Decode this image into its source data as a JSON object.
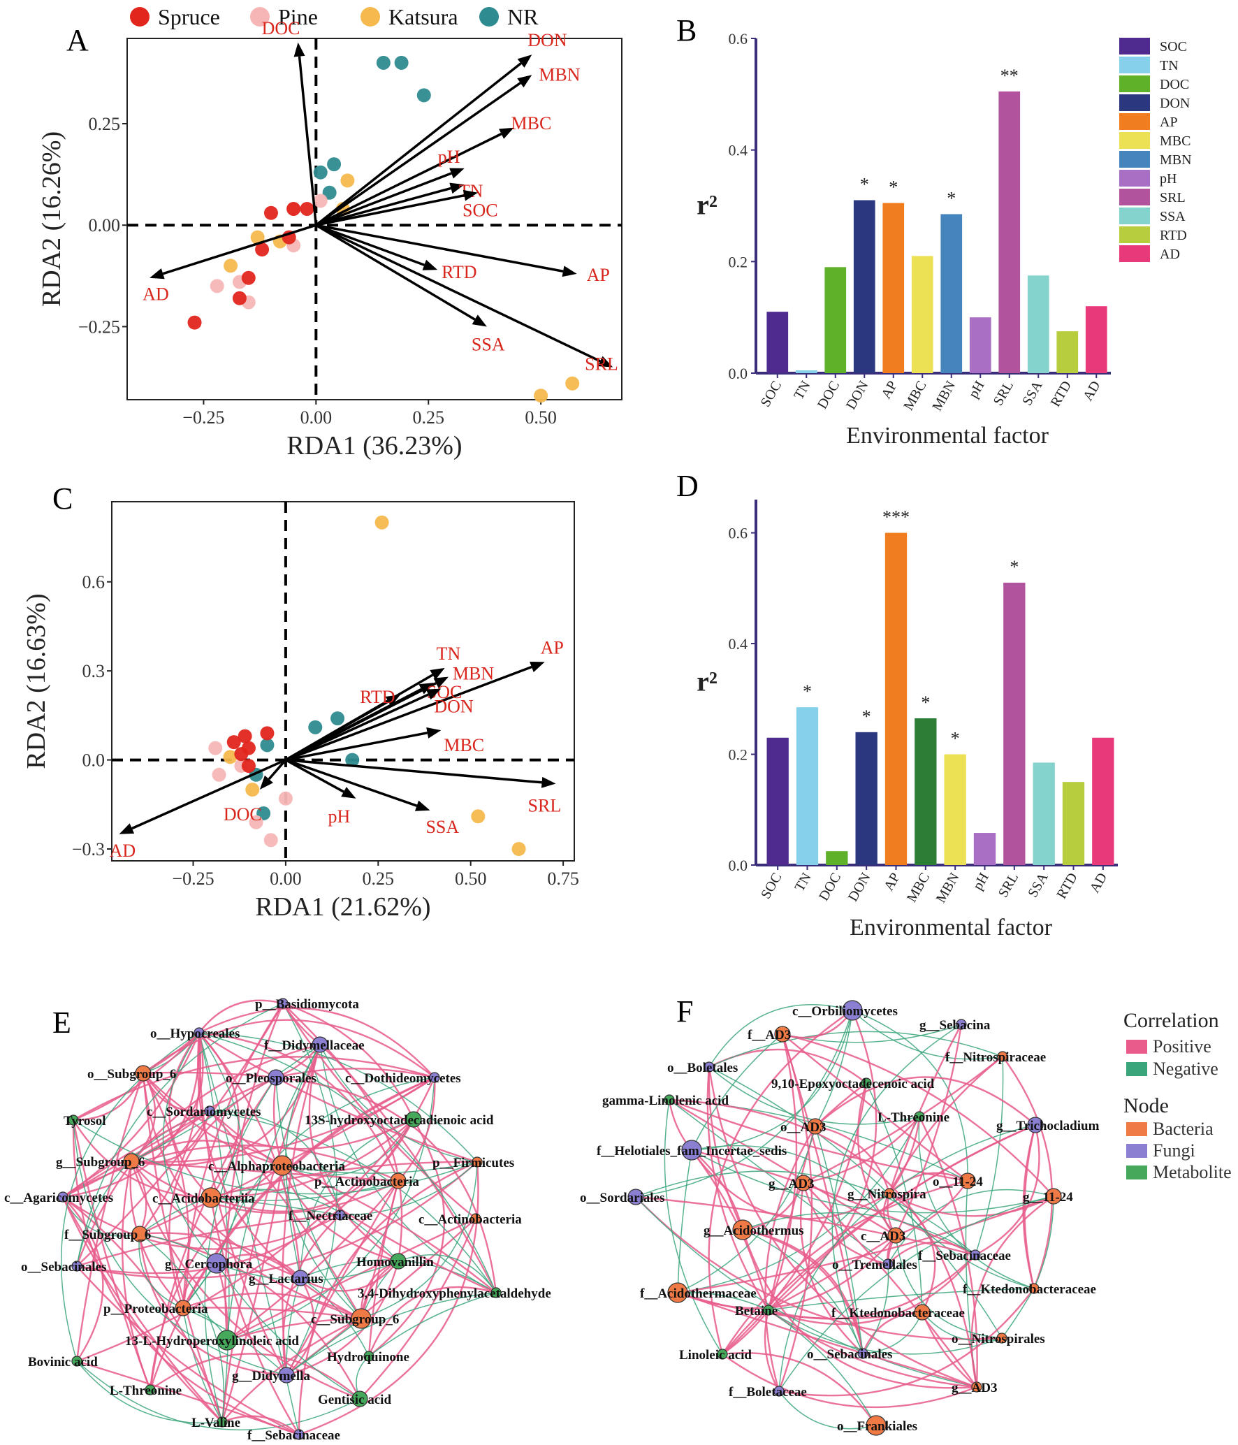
{
  "legend_groups": [
    {
      "name": "Spruce",
      "color": "#e2261e"
    },
    {
      "name": "Pine",
      "color": "#f7b6b6"
    },
    {
      "name": "Katsura",
      "color": "#f6b94e"
    },
    {
      "name": "NR",
      "color": "#2e8b8f"
    }
  ],
  "colors": {
    "arrow": "#000000",
    "arrow_label": "#d9261c",
    "axis_purple": "#3a2e7a",
    "positive": "#e85b8a",
    "negative": "#3aa57a"
  },
  "chart_data": [
    {
      "panel": "A",
      "type": "scatter",
      "xlabel": "RDA1 (36.23%)",
      "ylabel": "RDA2 (16.26%)",
      "xlim": [
        -0.42,
        0.68
      ],
      "ylim": [
        -0.43,
        0.46
      ],
      "xticks": [
        -0.25,
        0.0,
        0.25,
        0.5
      ],
      "xtick_labels": [
        "−0.25",
        "0.00",
        "0.25",
        "0.50"
      ],
      "yticks": [
        -0.25,
        0.0,
        0.25
      ],
      "ytick_labels": [
        "−0.25",
        "0.00",
        "0.25"
      ],
      "points": [
        {
          "g": "NR",
          "x": 0.15,
          "y": 0.4
        },
        {
          "g": "NR",
          "x": 0.19,
          "y": 0.4
        },
        {
          "g": "NR",
          "x": 0.24,
          "y": 0.32
        },
        {
          "g": "NR",
          "x": 0.04,
          "y": 0.15
        },
        {
          "g": "NR",
          "x": 0.01,
          "y": 0.13
        },
        {
          "g": "NR",
          "x": 0.03,
          "y": 0.08
        },
        {
          "g": "Katsura",
          "x": 0.07,
          "y": 0.11
        },
        {
          "g": "Katsura",
          "x": 0.06,
          "y": 0.04
        },
        {
          "g": "Katsura",
          "x": -0.13,
          "y": -0.03
        },
        {
          "g": "Katsura",
          "x": -0.08,
          "y": -0.04
        },
        {
          "g": "Katsura",
          "x": -0.19,
          "y": -0.1
        },
        {
          "g": "Katsura",
          "x": 0.5,
          "y": -0.42
        },
        {
          "g": "Katsura",
          "x": 0.57,
          "y": -0.39
        },
        {
          "g": "Pine",
          "x": 0.01,
          "y": 0.06
        },
        {
          "g": "Pine",
          "x": -0.05,
          "y": 0.04
        },
        {
          "g": "Pine",
          "x": -0.05,
          "y": -0.05
        },
        {
          "g": "Pine",
          "x": -0.17,
          "y": -0.14
        },
        {
          "g": "Pine",
          "x": -0.22,
          "y": -0.15
        },
        {
          "g": "Pine",
          "x": -0.15,
          "y": -0.19
        },
        {
          "g": "Spruce",
          "x": -0.05,
          "y": 0.04
        },
        {
          "g": "Spruce",
          "x": -0.02,
          "y": 0.04
        },
        {
          "g": "Spruce",
          "x": -0.1,
          "y": 0.03
        },
        {
          "g": "Spruce",
          "x": -0.06,
          "y": -0.03
        },
        {
          "g": "Spruce",
          "x": -0.12,
          "y": -0.06
        },
        {
          "g": "Spruce",
          "x": -0.15,
          "y": -0.13
        },
        {
          "g": "Spruce",
          "x": -0.17,
          "y": -0.18
        },
        {
          "g": "Spruce",
          "x": -0.27,
          "y": -0.24
        }
      ],
      "arrows": [
        {
          "label": "DOC",
          "x": -0.04,
          "y": 0.45
        },
        {
          "label": "DON",
          "x": 0.48,
          "y": 0.42
        },
        {
          "label": "MBN",
          "x": 0.48,
          "y": 0.37
        },
        {
          "label": "MBC",
          "x": 0.44,
          "y": 0.24
        },
        {
          "label": "pH",
          "x": 0.33,
          "y": 0.14
        },
        {
          "label": "TN",
          "x": 0.33,
          "y": 0.1
        },
        {
          "label": "SOC",
          "x": 0.36,
          "y": 0.08
        },
        {
          "label": "AD",
          "x": -0.37,
          "y": -0.13
        },
        {
          "label": "RTD",
          "x": 0.27,
          "y": -0.11
        },
        {
          "label": "AP",
          "x": 0.58,
          "y": -0.12
        },
        {
          "label": "SSA",
          "x": 0.38,
          "y": -0.25
        },
        {
          "label": "SRL",
          "x": 0.66,
          "y": -0.35
        }
      ]
    },
    {
      "panel": "B",
      "type": "bar",
      "xlabel": "Environmental factor",
      "ylabel": "r²",
      "ylim": [
        0,
        0.6
      ],
      "yticks": [
        0.0,
        0.2,
        0.4,
        0.6
      ],
      "ytick_labels": [
        "0.0",
        "0.2",
        "0.4",
        "0.6"
      ],
      "categories": [
        "SOC",
        "TN",
        "DOC",
        "DON",
        "AP",
        "MBC",
        "MBN",
        "pH",
        "SRL",
        "SSA",
        "RTD",
        "AD"
      ],
      "values": [
        0.11,
        0.005,
        0.19,
        0.31,
        0.305,
        0.21,
        0.285,
        0.1,
        0.505,
        0.175,
        0.075,
        0.12
      ],
      "significance": [
        "",
        "",
        "",
        "*",
        "*",
        "",
        "*",
        "",
        "**",
        "",
        "",
        ""
      ],
      "colors": [
        "#4f2a8f",
        "#86d0ec",
        "#5fb129",
        "#2b377f",
        "#f07e20",
        "#ece054",
        "#4684bd",
        "#a86fc4",
        "#b2549d",
        "#85d3cd",
        "#b7cd3e",
        "#e83a7a"
      ]
    },
    {
      "panel": "C",
      "type": "scatter",
      "xlabel": "RDA1 (21.62%)",
      "ylabel": "RDA2 (16.63%)",
      "xlim": [
        -0.47,
        0.78
      ],
      "ylim": [
        -0.34,
        0.87
      ],
      "xticks": [
        -0.25,
        0.0,
        0.25,
        0.5,
        0.75
      ],
      "xtick_labels": [
        "−0.25",
        "0.00",
        "0.25",
        "0.50",
        "0.75"
      ],
      "yticks": [
        -0.3,
        0.0,
        0.3,
        0.6
      ],
      "ytick_labels": [
        "−0.3",
        "0.0",
        "0.3",
        "0.6"
      ],
      "points": [
        {
          "g": "Katsura",
          "x": 0.26,
          "y": 0.8
        },
        {
          "g": "Katsura",
          "x": 0.52,
          "y": -0.19
        },
        {
          "g": "Katsura",
          "x": 0.63,
          "y": -0.3
        },
        {
          "g": "Katsura",
          "x": -0.15,
          "y": 0.01
        },
        {
          "g": "Katsura",
          "x": -0.09,
          "y": -0.1
        },
        {
          "g": "NR",
          "x": 0.14,
          "y": 0.14
        },
        {
          "g": "NR",
          "x": 0.08,
          "y": 0.11
        },
        {
          "g": "NR",
          "x": 0.18,
          "y": 0.0
        },
        {
          "g": "NR",
          "x": -0.05,
          "y": 0.05
        },
        {
          "g": "NR",
          "x": -0.08,
          "y": -0.05
        },
        {
          "g": "NR",
          "x": -0.06,
          "y": -0.18
        },
        {
          "g": "Pine",
          "x": -0.19,
          "y": 0.04
        },
        {
          "g": "Pine",
          "x": -0.18,
          "y": -0.05
        },
        {
          "g": "Pine",
          "x": -0.12,
          "y": -0.02
        },
        {
          "g": "Pine",
          "x": -0.08,
          "y": -0.21
        },
        {
          "g": "Pine",
          "x": -0.04,
          "y": -0.27
        },
        {
          "g": "Pine",
          "x": 0.0,
          "y": -0.13
        },
        {
          "g": "Spruce",
          "x": -0.11,
          "y": 0.08
        },
        {
          "g": "Spruce",
          "x": -0.05,
          "y": 0.09
        },
        {
          "g": "Spruce",
          "x": -0.14,
          "y": 0.06
        },
        {
          "g": "Spruce",
          "x": -0.1,
          "y": 0.04
        },
        {
          "g": "Spruce",
          "x": -0.12,
          "y": 0.02
        },
        {
          "g": "Spruce",
          "x": -0.1,
          "y": -0.02
        }
      ],
      "arrows": [
        {
          "label": "TN",
          "x": 0.43,
          "y": 0.31
        },
        {
          "label": "AP",
          "x": 0.7,
          "y": 0.33
        },
        {
          "label": "MBN",
          "x": 0.44,
          "y": 0.28
        },
        {
          "label": "RTD",
          "x": 0.31,
          "y": 0.22
        },
        {
          "label": "SOC",
          "x": 0.4,
          "y": 0.26
        },
        {
          "label": "DON",
          "x": 0.42,
          "y": 0.24
        },
        {
          "label": "MBC",
          "x": 0.42,
          "y": 0.1
        },
        {
          "label": "SRL",
          "x": 0.73,
          "y": -0.08
        },
        {
          "label": "SSA",
          "x": 0.39,
          "y": -0.17
        },
        {
          "label": "pH",
          "x": 0.19,
          "y": -0.13
        },
        {
          "label": "DOC",
          "x": -0.07,
          "y": -0.1
        },
        {
          "label": "AD",
          "x": -0.45,
          "y": -0.25
        }
      ]
    },
    {
      "panel": "D",
      "type": "bar",
      "xlabel": "Environmental factor",
      "ylabel": "r²",
      "ylim": [
        0,
        0.66
      ],
      "yticks": [
        0.0,
        0.2,
        0.4,
        0.6
      ],
      "ytick_labels": [
        "0.0",
        "0.2",
        "0.4",
        "0.6"
      ],
      "categories": [
        "SOC",
        "TN",
        "DOC",
        "DON",
        "AP",
        "MBC",
        "MBN",
        "pH",
        "SRL",
        "SSA",
        "RTD",
        "AD"
      ],
      "values": [
        0.23,
        0.285,
        0.025,
        0.24,
        0.6,
        0.265,
        0.2,
        0.058,
        0.51,
        0.185,
        0.15,
        0.23
      ],
      "significance": [
        "",
        "*",
        "",
        "*",
        "***",
        "*",
        "*",
        "",
        "*",
        "",
        "",
        ""
      ],
      "colors": [
        "#4f2a8f",
        "#86d0ec",
        "#5fb129",
        "#2b377f",
        "#f07e20",
        "#2e7d36",
        "#ece054",
        "#a86fc4",
        "#b2549d",
        "#85d3cd",
        "#b7cd3e",
        "#e83a7a"
      ]
    },
    {
      "panel": "E",
      "type": "network",
      "nodes": [
        {
          "label": "p__Basidiomycota",
          "type": "Fungi",
          "size": 1
        },
        {
          "label": "o__Hypocreales",
          "type": "Fungi",
          "size": 1
        },
        {
          "label": "f__Didymellaceae",
          "type": "Fungi",
          "size": 2
        },
        {
          "label": "o__Subgroup_6",
          "type": "Bacteria",
          "size": 2
        },
        {
          "label": "o__Pleosporales",
          "type": "Fungi",
          "size": 2
        },
        {
          "label": "c__Dothideomycetes",
          "type": "Fungi",
          "size": 1
        },
        {
          "label": "c__Sordariomycetes",
          "type": "Fungi",
          "size": 1
        },
        {
          "label": "13S-hydroxyoctadecadienoic acid",
          "type": "Metabolite",
          "size": 2
        },
        {
          "label": "Tyrosol",
          "type": "Metabolite",
          "size": 1
        },
        {
          "label": "g__Subgroup_6",
          "type": "Bacteria",
          "size": 2
        },
        {
          "label": "c__Alphaproteobacteria",
          "type": "Bacteria",
          "size": 3
        },
        {
          "label": "p__Firmicutes",
          "type": "Bacteria",
          "size": 1
        },
        {
          "label": "p__Actinobacteria",
          "type": "Bacteria",
          "size": 2
        },
        {
          "label": "c__Agaricomycetes",
          "type": "Fungi",
          "size": 1
        },
        {
          "label": "c__Acidobacteriia",
          "type": "Bacteria",
          "size": 3
        },
        {
          "label": "f__Nectriaceae",
          "type": "Fungi",
          "size": 1
        },
        {
          "label": "c__Actinobacteria",
          "type": "Bacteria",
          "size": 1
        },
        {
          "label": "f__Subgroup_6",
          "type": "Bacteria",
          "size": 2
        },
        {
          "label": "o__Sebacinales",
          "type": "Fungi",
          "size": 1
        },
        {
          "label": "g__Cercophora",
          "type": "Fungi",
          "size": 3
        },
        {
          "label": "g__Lactarius",
          "type": "Fungi",
          "size": 2
        },
        {
          "label": "Homovanillin",
          "type": "Metabolite",
          "size": 2
        },
        {
          "label": "3,4-Dihydroxyphenylacetaldehyde",
          "type": "Metabolite",
          "size": 1
        },
        {
          "label": "p__Proteobacteria",
          "type": "Bacteria",
          "size": 2
        },
        {
          "label": "c__Subgroup_6",
          "type": "Bacteria",
          "size": 3
        },
        {
          "label": "13-L-Hydroperoxylinoleic acid",
          "type": "Metabolite",
          "size": 3
        },
        {
          "label": "Bovinic acid",
          "type": "Metabolite",
          "size": 1
        },
        {
          "label": "Hydroquinone",
          "type": "Metabolite",
          "size": 1
        },
        {
          "label": "g__Didymella",
          "type": "Fungi",
          "size": 2
        },
        {
          "label": "L-Threonine",
          "type": "Metabolite",
          "size": 1
        },
        {
          "label": "Gentisic acid",
          "type": "Metabolite",
          "size": 2
        },
        {
          "label": "L-Valine",
          "type": "Metabolite",
          "size": 1
        },
        {
          "label": "f__Sebacinaceae",
          "type": "Fungi",
          "size": 1
        }
      ]
    },
    {
      "panel": "F",
      "type": "network",
      "nodes": [
        {
          "label": "c__Orbiliomycetes",
          "type": "Fungi",
          "size": 3
        },
        {
          "label": "g__Sebacina",
          "type": "Fungi",
          "size": 1
        },
        {
          "label": "f__AD3",
          "type": "Bacteria",
          "size": 2
        },
        {
          "label": "f__Nitrospiraceae",
          "type": "Bacteria",
          "size": 1
        },
        {
          "label": "o__Boletales",
          "type": "Fungi",
          "size": 1
        },
        {
          "label": "9,10-Epoxyoctadecenoic acid",
          "type": "Metabolite",
          "size": 1
        },
        {
          "label": "gamma-Linolenic acid",
          "type": "Metabolite",
          "size": 1
        },
        {
          "label": "L-Threonine",
          "type": "Metabolite",
          "size": 1
        },
        {
          "label": "o__AD3",
          "type": "Bacteria",
          "size": 2
        },
        {
          "label": "g__Trichocladium",
          "type": "Fungi",
          "size": 2
        },
        {
          "label": "f__Helotiales_fam_Incertae_sedis",
          "type": "Fungi",
          "size": 3
        },
        {
          "label": "g__AD3",
          "type": "Bacteria",
          "size": 2
        },
        {
          "label": "g__Nitrospira",
          "type": "Bacteria",
          "size": 1
        },
        {
          "label": "o__11-24",
          "type": "Bacteria",
          "size": 2
        },
        {
          "label": "o__Sordariales",
          "type": "Fungi",
          "size": 2
        },
        {
          "label": "g__11-24",
          "type": "Bacteria",
          "size": 2
        },
        {
          "label": "g__Acidothermus",
          "type": "Bacteria",
          "size": 3
        },
        {
          "label": "c__AD3",
          "type": "Bacteria",
          "size": 2
        },
        {
          "label": "o__Tremellales",
          "type": "Fungi",
          "size": 1
        },
        {
          "label": "f__Sebacinaceae",
          "type": "Fungi",
          "size": 1
        },
        {
          "label": "f__Acidothermaceae",
          "type": "Bacteria",
          "size": 3
        },
        {
          "label": "f__Ktedonobacteraceae",
          "type": "Bacteria",
          "size": 1
        },
        {
          "label": "Betaine",
          "type": "Metabolite",
          "size": 1
        },
        {
          "label": "f__Ktedonobacteraceae",
          "type": "Bacteria",
          "size": 2
        },
        {
          "label": "o__Nitrospirales",
          "type": "Bacteria",
          "size": 1
        },
        {
          "label": "Linoleic acid",
          "type": "Metabolite",
          "size": 1
        },
        {
          "label": "o__Sebacinales",
          "type": "Fungi",
          "size": 1
        },
        {
          "label": "g__AD3",
          "type": "Bacteria",
          "size": 1
        },
        {
          "label": "f__Boletaceae",
          "type": "Fungi",
          "size": 1
        },
        {
          "label": "o__Frankiales",
          "type": "Bacteria",
          "size": 3
        }
      ]
    }
  ],
  "bar_legend": {
    "items": [
      "SOC",
      "TN",
      "DOC",
      "DON",
      "AP",
      "MBC",
      "MBN",
      "pH",
      "SRL",
      "SSA",
      "RTD",
      "AD"
    ],
    "colors": [
      "#4f2a8f",
      "#86d0ec",
      "#5fb129",
      "#2b377f",
      "#f07e20",
      "#ece054",
      "#4684bd",
      "#a86fc4",
      "#b2549d",
      "#85d3cd",
      "#b7cd3e",
      "#e83a7a"
    ]
  },
  "network_legend": {
    "correlation_title": "Correlation",
    "correlation": [
      {
        "label": "Positive",
        "color": "#e85b8a"
      },
      {
        "label": "Negative",
        "color": "#3aa57a"
      }
    ],
    "node_title": "Node",
    "nodes": [
      {
        "label": "Bacteria",
        "color": "#f07a45"
      },
      {
        "label": "Fungi",
        "color": "#8a7fd0"
      },
      {
        "label": "Metabolite",
        "color": "#45a85a"
      }
    ]
  }
}
